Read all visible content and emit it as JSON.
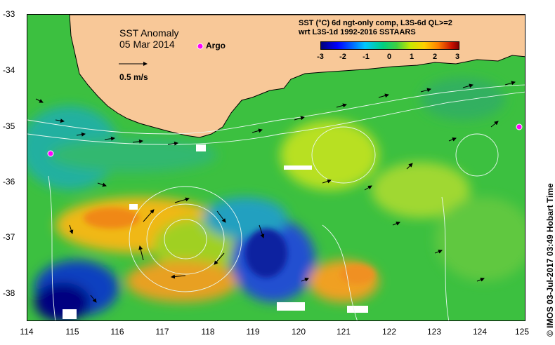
{
  "map": {
    "title": "SST Anomaly",
    "date": "05 Mar 2014",
    "argo_label": "Argo",
    "speed_label": "0.5 m/s",
    "legend_title": "SST (°C) 6d ngt-only comp, L3S-6d QL>=2",
    "legend_subtitle": "wrt L3S-1d 1992-2016 SSTAARS",
    "colorbar_ticks": [
      "-3",
      "-2",
      "-1",
      "0",
      "1",
      "2",
      "3"
    ],
    "y_ticks": [
      "-33",
      "-34",
      "-35",
      "-36",
      "-37",
      "-38"
    ],
    "x_ticks": [
      "114",
      "115",
      "116",
      "117",
      "118",
      "119",
      "120",
      "121",
      "122",
      "123",
      "124",
      "125"
    ],
    "credit": "© IMOS 03-Jul-2017 03:49 Hobart Time",
    "colors": {
      "land": "#f8c898",
      "argo": "#ff00ff",
      "ocean_base": "#40c040"
    }
  }
}
